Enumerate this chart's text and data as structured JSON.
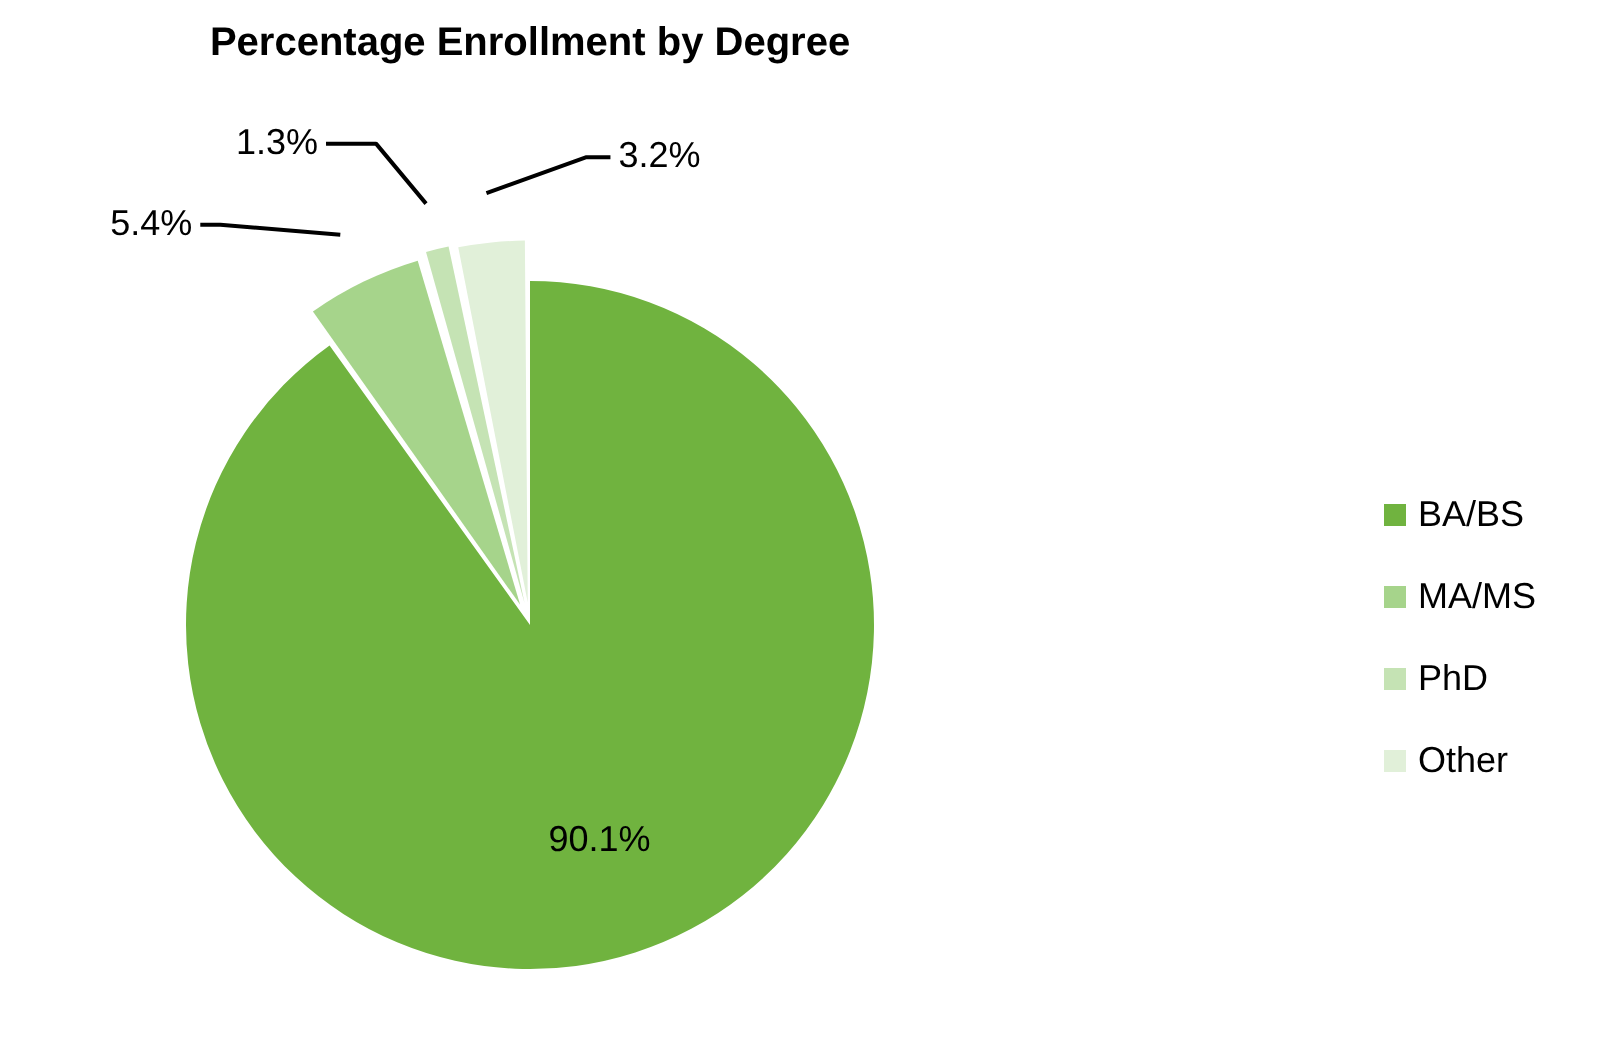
{
  "chart_data": {
    "type": "pie",
    "title": "Percentage Enrollment by Degree",
    "categories": [
      "BA/BS",
      "MA/MS",
      "PhD",
      "Other"
    ],
    "values": [
      90.1,
      5.4,
      1.3,
      3.2
    ],
    "value_labels": [
      "90.1%",
      "5.4%",
      "1.3%",
      "3.2%"
    ],
    "colors": [
      "#70b33f",
      "#a6d48b",
      "#c5e3b4",
      "#e1f0d9"
    ],
    "legend": "right"
  }
}
